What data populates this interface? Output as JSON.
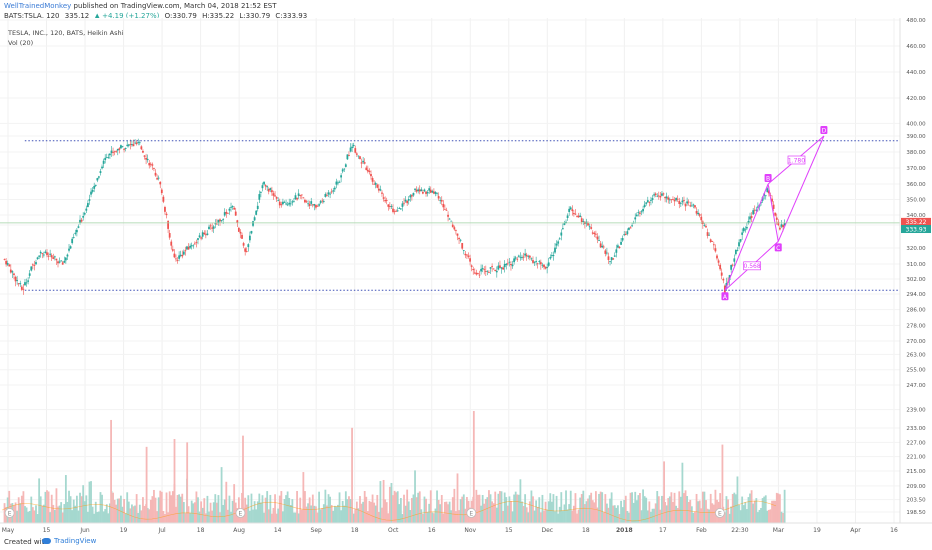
{
  "header": {
    "author": "WellTrainedMonkey",
    "published": "published on TradingView.com, March 04, 2018 21:52 EST"
  },
  "ohlc": {
    "symbol": "BATS:TSLA, 120",
    "last": "335.12",
    "change": "▲ +4.19 (+1.27%)",
    "open": "O:330.79",
    "high": "H:335.22",
    "low": "L:330.79",
    "close": "C:333.93"
  },
  "legend": {
    "instrument": "TESLA, INC., 120, BATS, Heikin Ashi",
    "volume": "Vol (20)"
  },
  "footer": {
    "created_with": "Created with",
    "brand": "TradingView"
  },
  "colors": {
    "up": "#26a69a",
    "down": "#ef5350",
    "pattern": "#e040fb",
    "support_line": "#3f51b5",
    "price_tag": "#ef5350",
    "last_tag": "#26a69a"
  },
  "chart_data": {
    "type": "candlestick",
    "ylim": [
      186,
      480
    ],
    "y_tick_labels": [
      "480.00",
      "460.00",
      "440.00",
      "420.00",
      "400.00",
      "390.00",
      "380.00",
      "370.00",
      "360.00",
      "350.00",
      "340.00",
      "335.22",
      "333.93",
      "320.00",
      "310.00",
      "302.00",
      "294.00",
      "286.00",
      "278.00",
      "270.00",
      "263.00",
      "255.00",
      "247.00",
      "239.00",
      "233.00",
      "227.00",
      "221.00",
      "215.00",
      "209.00",
      "203.50",
      "198.50"
    ],
    "x_tick_labels": [
      "May",
      "15",
      "Jun",
      "19",
      "Jul",
      "18",
      "Aug",
      "14",
      "Sep",
      "18",
      "Oct",
      "16",
      "Nov",
      "15",
      "Dec",
      "18",
      "2018",
      "17",
      "Feb",
      "22:30",
      "Mar",
      "19",
      "Apr",
      "16"
    ],
    "price_path": [
      [
        "2017-05-01",
        313
      ],
      [
        "2017-05-08",
        296
      ],
      [
        "2017-05-15",
        318
      ],
      [
        "2017-05-24",
        310
      ],
      [
        "2017-06-01",
        340
      ],
      [
        "2017-06-10",
        378
      ],
      [
        "2017-06-16",
        383
      ],
      [
        "2017-06-23",
        385
      ],
      [
        "2017-07-01",
        362
      ],
      [
        "2017-07-07",
        312
      ],
      [
        "2017-07-14",
        322
      ],
      [
        "2017-07-22",
        333
      ],
      [
        "2017-07-30",
        345
      ],
      [
        "2017-08-04",
        316
      ],
      [
        "2017-08-11",
        362
      ],
      [
        "2017-08-18",
        346
      ],
      [
        "2017-08-25",
        352
      ],
      [
        "2017-09-01",
        345
      ],
      [
        "2017-09-10",
        362
      ],
      [
        "2017-09-15",
        385
      ],
      [
        "2017-09-21",
        368
      ],
      [
        "2017-10-02",
        340
      ],
      [
        "2017-10-10",
        356
      ],
      [
        "2017-10-18",
        355
      ],
      [
        "2017-10-26",
        330
      ],
      [
        "2017-11-02",
        305
      ],
      [
        "2017-11-12",
        308
      ],
      [
        "2017-11-22",
        315
      ],
      [
        "2017-12-01",
        308
      ],
      [
        "2017-12-10",
        344
      ],
      [
        "2017-12-18",
        332
      ],
      [
        "2017-12-26",
        312
      ],
      [
        "2018-01-03",
        334
      ],
      [
        "2018-01-12",
        354
      ],
      [
        "2018-01-20",
        350
      ],
      [
        "2018-01-28",
        345
      ],
      [
        "2018-02-05",
        320
      ],
      [
        "2018-02-09",
        296
      ],
      [
        "2018-02-16",
        330
      ],
      [
        "2018-02-26",
        357
      ],
      [
        "2018-03-02",
        332
      ],
      [
        "2018-03-05",
        335
      ]
    ],
    "support_line": 296,
    "resistance_line": 387,
    "harmonic_pattern": {
      "points": [
        {
          "label": "A",
          "date": "2018-02-09",
          "price": 296
        },
        {
          "label": "B",
          "date": "2018-02-26",
          "price": 360
        },
        {
          "label": "C",
          "date": "2018-03-02",
          "price": 324
        },
        {
          "label": "D",
          "date": "2018-03-20",
          "price": 390
        }
      ],
      "ratios": [
        {
          "label": "0.568"
        },
        {
          "label": "1.780"
        }
      ]
    },
    "volume": {
      "series_name": "Vol (20)",
      "spikes": [
        {
          "date": "2017-06-12",
          "rel": 0.92
        },
        {
          "date": "2017-06-26",
          "rel": 0.68
        },
        {
          "date": "2017-07-07",
          "rel": 0.75
        },
        {
          "date": "2017-07-12",
          "rel": 0.72
        },
        {
          "date": "2017-08-03",
          "rel": 0.78
        },
        {
          "date": "2017-09-15",
          "rel": 0.85
        },
        {
          "date": "2017-11-02",
          "rel": 1.0
        },
        {
          "date": "2018-01-16",
          "rel": 0.55
        },
        {
          "date": "2018-02-08",
          "rel": 0.7
        }
      ]
    },
    "event_markers": [
      {
        "date": "2017-05-03",
        "label": "E"
      },
      {
        "date": "2017-08-02",
        "label": "E"
      },
      {
        "date": "2017-11-01",
        "label": "E"
      },
      {
        "date": "2018-02-07",
        "label": "E"
      }
    ],
    "last_price": "335.22",
    "last_price_2": "333.93"
  }
}
